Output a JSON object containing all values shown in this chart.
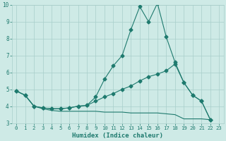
{
  "xlabel": "Humidex (Indice chaleur)",
  "xlim": [
    -0.5,
    23.5
  ],
  "ylim": [
    3,
    10
  ],
  "xticks": [
    0,
    1,
    2,
    3,
    4,
    5,
    6,
    7,
    8,
    9,
    10,
    11,
    12,
    13,
    14,
    15,
    16,
    17,
    18,
    19,
    20,
    21,
    22,
    23
  ],
  "yticks": [
    3,
    4,
    5,
    6,
    7,
    8,
    9,
    10
  ],
  "background_color": "#ceeae6",
  "grid_color": "#a8ceca",
  "line_color": "#1e7a6e",
  "series1_x": [
    0,
    1,
    2,
    3,
    4,
    5,
    6,
    7,
    8,
    9,
    10,
    11,
    12,
    13,
    14,
    15,
    16,
    17,
    18,
    19,
    20,
    21,
    22,
    23
  ],
  "series1_y": [
    4.9,
    4.65,
    4.0,
    3.9,
    3.85,
    3.85,
    3.9,
    4.0,
    4.05,
    4.55,
    5.6,
    6.4,
    7.0,
    8.55,
    9.9,
    9.0,
    10.1,
    8.1,
    6.6,
    5.4,
    4.65,
    4.3,
    3.2,
    null
  ],
  "series2_x": [
    0,
    1,
    2,
    3,
    4,
    5,
    6,
    7,
    8,
    9,
    10,
    11,
    12,
    13,
    14,
    15,
    16,
    17,
    18,
    19,
    20,
    21,
    22,
    23
  ],
  "series2_y": [
    4.9,
    4.65,
    4.0,
    3.9,
    3.85,
    3.85,
    3.9,
    4.0,
    4.05,
    4.3,
    4.55,
    4.75,
    5.0,
    5.2,
    5.5,
    5.75,
    5.9,
    6.1,
    6.5,
    5.4,
    4.65,
    4.3,
    3.2,
    null
  ],
  "series3_x": [
    0,
    1,
    2,
    3,
    4,
    5,
    6,
    7,
    8,
    9,
    10,
    11,
    12,
    13,
    14,
    15,
    16,
    17,
    18,
    19,
    20,
    21,
    22,
    23
  ],
  "series3_y": [
    4.9,
    4.65,
    4.0,
    3.85,
    3.75,
    3.7,
    3.7,
    3.7,
    3.7,
    3.7,
    3.65,
    3.65,
    3.65,
    3.6,
    3.6,
    3.6,
    3.6,
    3.55,
    3.5,
    3.25,
    3.25,
    3.25,
    3.2,
    null
  ],
  "marker_size": 2.5
}
